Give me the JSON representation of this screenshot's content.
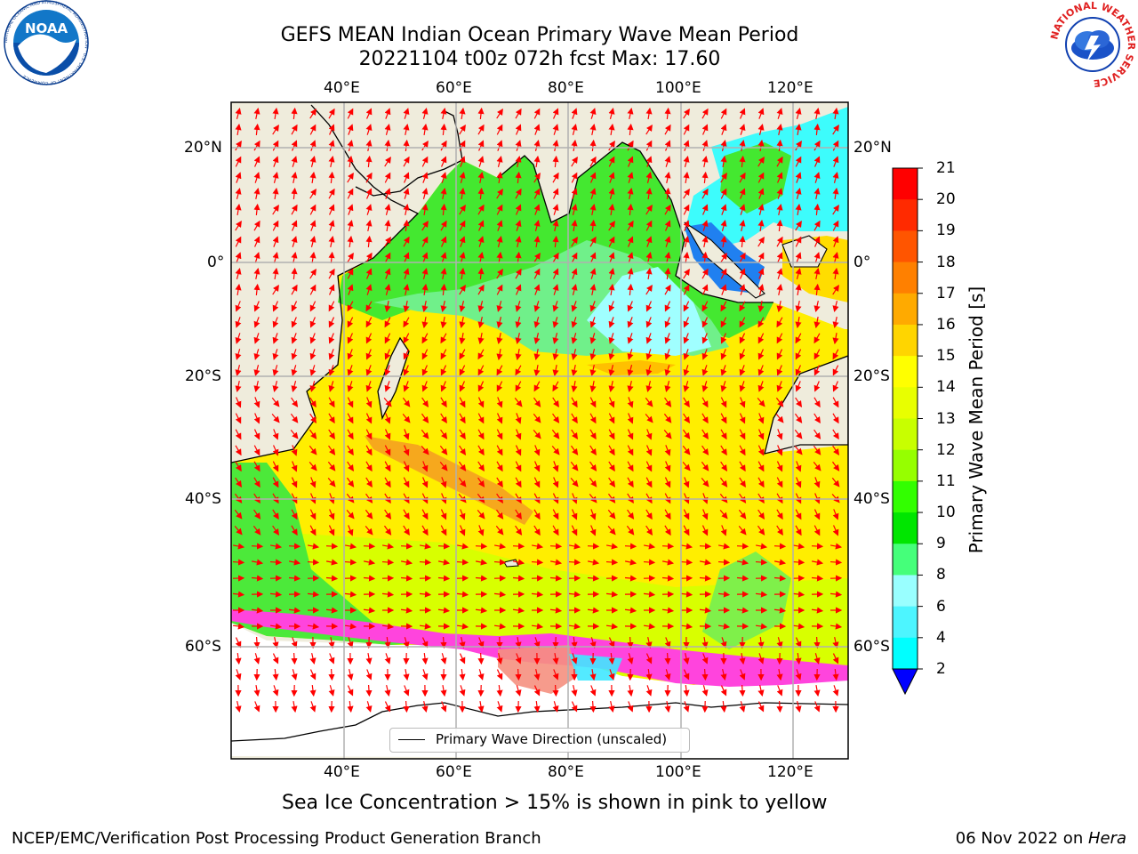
{
  "header": {
    "title_line1": "GEFS MEAN Indian Ocean Primary Wave Mean Period",
    "title_line2": "20221104 t00z 072h fcst   Max: 17.60"
  },
  "logos": {
    "noaa_text": "NOAA",
    "noaa_ring_text": "NATIONAL OCEANIC AND ATMOSPHERIC ADMINISTRATION · U.S. DEPARTMENT OF COMMERCE",
    "nws_ring_text": "NATIONAL WEATHER SERVICE"
  },
  "axes": {
    "lon_ticks": [
      "40°E",
      "60°E",
      "80°E",
      "100°E",
      "120°E"
    ],
    "lat_ticks_left": [
      "20°N",
      "0°",
      "20°S",
      "40°S",
      "60°S"
    ],
    "lat_ticks_right": [
      "20°N",
      "0°",
      "20°S",
      "40°S",
      "60°S"
    ]
  },
  "colorbar": {
    "label": "Primary Wave Mean Period [s]",
    "ticks": [
      "21",
      "20",
      "19",
      "18",
      "17",
      "16",
      "15",
      "14",
      "13",
      "12",
      "11",
      "10",
      "9",
      "8",
      "6",
      "4",
      "2"
    ],
    "colors_top_to_bottom": [
      "#ff0000",
      "#ff2a00",
      "#ff5500",
      "#ff8000",
      "#ffaa00",
      "#ffd500",
      "#ffff00",
      "#e8ff00",
      "#c8ff00",
      "#96ff00",
      "#32ff00",
      "#00e600",
      "#45ff7a",
      "#99ffff",
      "#4df5ff",
      "#00ffff",
      "#00a0ff",
      "#0032ff"
    ],
    "extend_color": "#0000ff"
  },
  "legend": {
    "label": "Primary Wave Direction (unscaled)"
  },
  "colors": {
    "land": "#efecdc",
    "sea_ice": "#ff44dd",
    "arrows": "#ff0000",
    "grid": "#b0b0b0"
  },
  "footnote": "Sea Ice Concentration > 15% is shown in pink to yellow",
  "footer": {
    "credit": "NCEP/EMC/Verification Post Processing Product Generation Branch",
    "date_prefix": "06 Nov 2022 on ",
    "date_machine": "Hera"
  }
}
